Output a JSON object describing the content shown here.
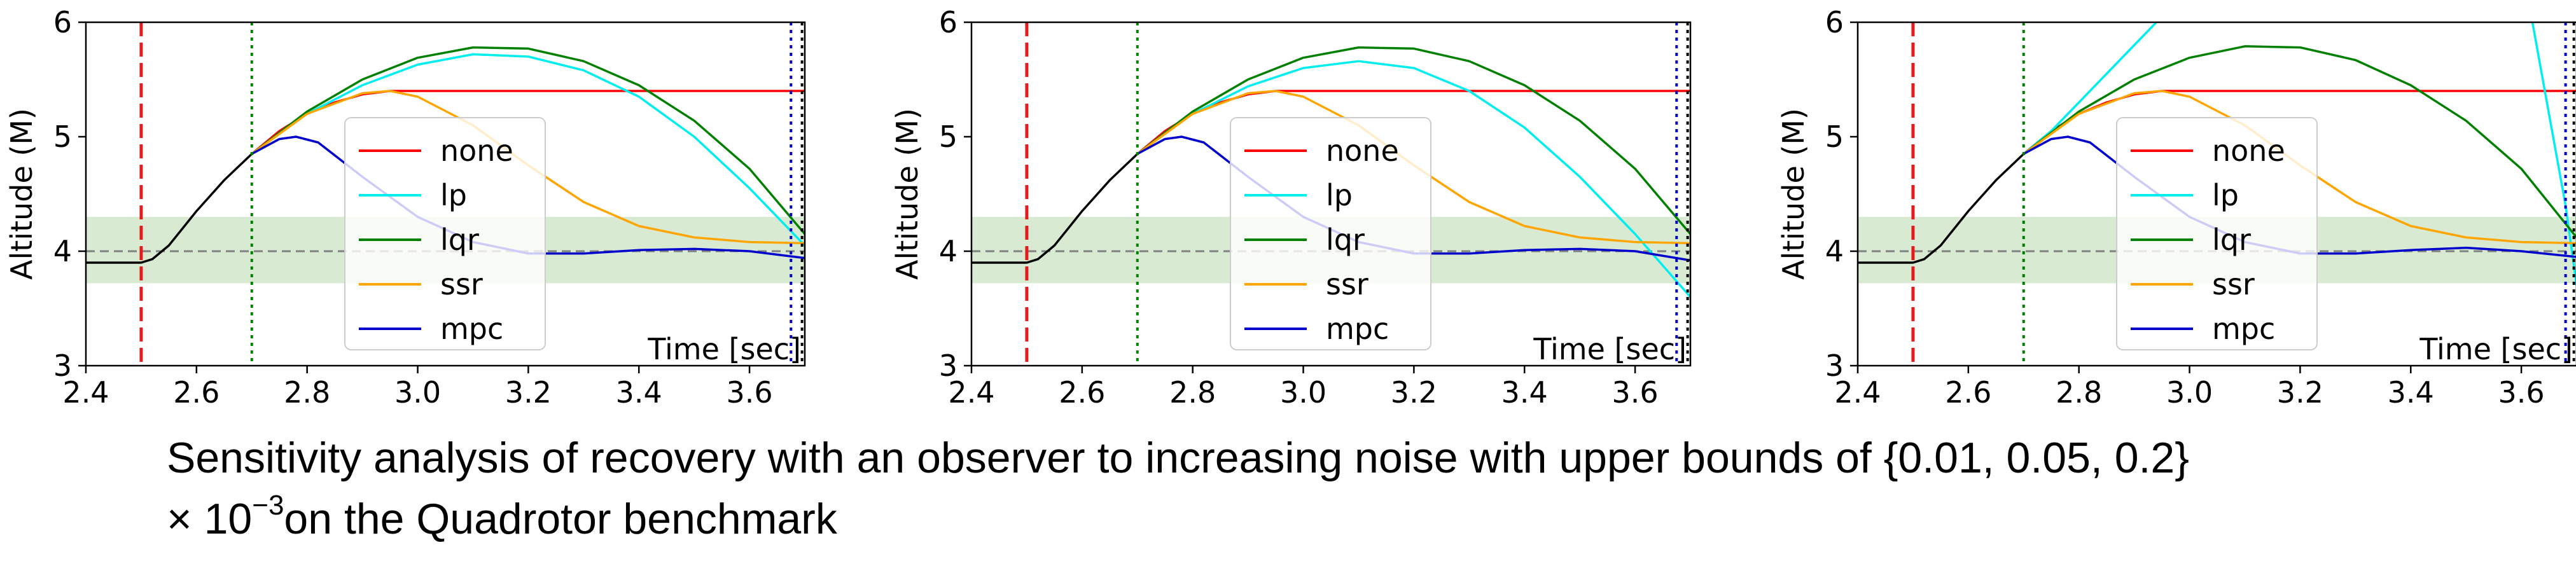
{
  "chart_data": [
    {
      "type": "line",
      "xlabel": "Time [sec]",
      "ylabel": "Altitude (M)",
      "xlim": [
        2.4,
        3.7
      ],
      "ylim": [
        3,
        6
      ],
      "xticks": [
        "2.4",
        "2.6",
        "2.8",
        "3.0",
        "3.2",
        "3.4",
        "3.6"
      ],
      "yticks": [
        "3",
        "4",
        "5",
        "6"
      ],
      "legend": {
        "placement": "center",
        "entries": [
          "none",
          "lp",
          "lqr",
          "ssr",
          "mpc"
        ]
      },
      "safe_band": [
        3.72,
        4.3
      ],
      "target": 4.0,
      "attack_start": 2.5,
      "recovery_start": 2.7,
      "deadline": [
        3.675,
        3.695
      ],
      "series": [
        {
          "name": "",
          "color": "#000000",
          "x": [
            2.4,
            2.48,
            2.5,
            2.52,
            2.55,
            2.6,
            2.65,
            2.7
          ],
          "y": [
            3.9,
            3.9,
            3.9,
            3.93,
            4.05,
            4.35,
            4.62,
            4.85
          ]
        },
        {
          "name": "none",
          "color": "#ff0000",
          "x": [
            2.7,
            2.75,
            2.8,
            2.85,
            2.9,
            2.95,
            3.0,
            3.1,
            3.3,
            3.5,
            3.7
          ],
          "y": [
            4.85,
            5.05,
            5.2,
            5.3,
            5.37,
            5.4,
            5.4,
            5.4,
            5.4,
            5.4,
            5.4
          ]
        },
        {
          "name": "lp",
          "color": "#00eeee",
          "x": [
            2.7,
            2.8,
            2.9,
            3.0,
            3.1,
            3.2,
            3.3,
            3.4,
            3.5,
            3.6,
            3.7
          ],
          "y": [
            4.85,
            5.2,
            5.45,
            5.63,
            5.72,
            5.7,
            5.58,
            5.35,
            5.0,
            4.55,
            4.05
          ]
        },
        {
          "name": "lqr",
          "color": "#008000",
          "x": [
            2.7,
            2.8,
            2.9,
            3.0,
            3.1,
            3.2,
            3.3,
            3.4,
            3.5,
            3.6,
            3.7
          ],
          "y": [
            4.85,
            5.22,
            5.5,
            5.69,
            5.78,
            5.77,
            5.66,
            5.45,
            5.14,
            4.72,
            4.15
          ]
        },
        {
          "name": "ssr",
          "color": "#ffa500",
          "x": [
            2.7,
            2.8,
            2.9,
            2.95,
            3.0,
            3.1,
            3.2,
            3.3,
            3.4,
            3.5,
            3.6,
            3.7
          ],
          "y": [
            4.85,
            5.2,
            5.38,
            5.4,
            5.35,
            5.1,
            4.75,
            4.43,
            4.22,
            4.12,
            4.08,
            4.07
          ]
        },
        {
          "name": "mpc",
          "color": "#0000cc",
          "x": [
            2.7,
            2.75,
            2.78,
            2.82,
            2.9,
            3.0,
            3.1,
            3.2,
            3.3,
            3.4,
            3.5,
            3.6,
            3.7
          ],
          "y": [
            4.85,
            4.98,
            5.0,
            4.95,
            4.65,
            4.3,
            4.08,
            3.98,
            3.98,
            4.01,
            4.02,
            4.0,
            3.94
          ]
        }
      ]
    },
    {
      "type": "line",
      "xlabel": "Time [sec]",
      "ylabel": "Altitude (M)",
      "xlim": [
        2.4,
        3.7
      ],
      "ylim": [
        3,
        6
      ],
      "xticks": [
        "2.4",
        "2.6",
        "2.8",
        "3.0",
        "3.2",
        "3.4",
        "3.6"
      ],
      "yticks": [
        "3",
        "4",
        "5",
        "6"
      ],
      "legend": {
        "placement": "center",
        "entries": [
          "none",
          "lp",
          "lqr",
          "ssr",
          "mpc"
        ]
      },
      "safe_band": [
        3.72,
        4.3
      ],
      "target": 4.0,
      "attack_start": 2.5,
      "recovery_start": 2.7,
      "deadline": [
        3.675,
        3.695
      ],
      "series": [
        {
          "name": "",
          "color": "#000000",
          "x": [
            2.4,
            2.48,
            2.5,
            2.52,
            2.55,
            2.6,
            2.65,
            2.7
          ],
          "y": [
            3.9,
            3.9,
            3.9,
            3.93,
            4.05,
            4.35,
            4.62,
            4.85
          ]
        },
        {
          "name": "none",
          "color": "#ff0000",
          "x": [
            2.7,
            2.75,
            2.8,
            2.85,
            2.9,
            2.95,
            3.0,
            3.1,
            3.3,
            3.5,
            3.7
          ],
          "y": [
            4.85,
            5.05,
            5.2,
            5.3,
            5.37,
            5.4,
            5.4,
            5.4,
            5.4,
            5.4,
            5.4
          ]
        },
        {
          "name": "lp",
          "color": "#00eeee",
          "x": [
            2.7,
            2.8,
            2.9,
            3.0,
            3.1,
            3.2,
            3.3,
            3.4,
            3.5,
            3.6,
            3.7
          ],
          "y": [
            4.85,
            5.2,
            5.44,
            5.6,
            5.66,
            5.6,
            5.4,
            5.08,
            4.65,
            4.15,
            3.6
          ]
        },
        {
          "name": "lqr",
          "color": "#008000",
          "x": [
            2.7,
            2.8,
            2.9,
            3.0,
            3.1,
            3.2,
            3.3,
            3.4,
            3.5,
            3.6,
            3.7
          ],
          "y": [
            4.85,
            5.22,
            5.5,
            5.69,
            5.78,
            5.77,
            5.66,
            5.45,
            5.14,
            4.72,
            4.15
          ]
        },
        {
          "name": "ssr",
          "color": "#ffa500",
          "x": [
            2.7,
            2.8,
            2.9,
            2.95,
            3.0,
            3.1,
            3.2,
            3.3,
            3.4,
            3.5,
            3.6,
            3.7
          ],
          "y": [
            4.85,
            5.2,
            5.38,
            5.4,
            5.35,
            5.1,
            4.75,
            4.43,
            4.22,
            4.12,
            4.08,
            4.07
          ]
        },
        {
          "name": "mpc",
          "color": "#0000cc",
          "x": [
            2.7,
            2.75,
            2.78,
            2.82,
            2.9,
            3.0,
            3.1,
            3.2,
            3.3,
            3.4,
            3.5,
            3.6,
            3.7
          ],
          "y": [
            4.85,
            4.98,
            5.0,
            4.95,
            4.65,
            4.3,
            4.08,
            3.98,
            3.98,
            4.01,
            4.02,
            4.0,
            3.92
          ]
        }
      ]
    },
    {
      "type": "line",
      "xlabel": "Time [sec]",
      "ylabel": "Altitude (M)",
      "xlim": [
        2.4,
        3.7
      ],
      "ylim": [
        3,
        6
      ],
      "xticks": [
        "2.4",
        "2.6",
        "2.8",
        "3.0",
        "3.2",
        "3.4",
        "3.6"
      ],
      "yticks": [
        "3",
        "4",
        "5",
        "6"
      ],
      "legend": {
        "placement": "center",
        "entries": [
          "none",
          "lp",
          "lqr",
          "ssr",
          "mpc"
        ]
      },
      "safe_band": [
        3.72,
        4.3
      ],
      "target": 4.0,
      "attack_start": 2.5,
      "recovery_start": 2.7,
      "deadline": [
        3.68,
        3.695
      ],
      "series": [
        {
          "name": "",
          "color": "#000000",
          "x": [
            2.4,
            2.48,
            2.5,
            2.52,
            2.55,
            2.6,
            2.65,
            2.7
          ],
          "y": [
            3.9,
            3.9,
            3.9,
            3.93,
            4.05,
            4.35,
            4.62,
            4.85
          ]
        },
        {
          "name": "none",
          "color": "#ff0000",
          "x": [
            2.7,
            2.75,
            2.8,
            2.85,
            2.9,
            2.95,
            3.0,
            3.1,
            3.3,
            3.5,
            3.7
          ],
          "y": [
            4.85,
            5.05,
            5.2,
            5.3,
            5.37,
            5.4,
            5.4,
            5.4,
            5.4,
            5.4,
            5.4
          ]
        },
        {
          "name": "lp",
          "color": "#00eeee",
          "x": [
            2.7,
            2.75,
            2.8,
            2.85,
            2.9,
            2.94,
            2.95,
            3.6,
            3.62,
            3.65,
            3.68,
            3.7
          ],
          "y": [
            4.85,
            5.05,
            5.3,
            5.55,
            5.8,
            6.0,
            6.05,
            6.05,
            6.0,
            5.2,
            4.4,
            3.7
          ]
        },
        {
          "name": "lqr",
          "color": "#008000",
          "x": [
            2.7,
            2.8,
            2.9,
            3.0,
            3.1,
            3.2,
            3.3,
            3.4,
            3.5,
            3.6,
            3.7
          ],
          "y": [
            4.85,
            5.22,
            5.5,
            5.69,
            5.79,
            5.78,
            5.67,
            5.45,
            5.14,
            4.72,
            4.12
          ]
        },
        {
          "name": "ssr",
          "color": "#ffa500",
          "x": [
            2.7,
            2.8,
            2.9,
            2.95,
            3.0,
            3.1,
            3.2,
            3.3,
            3.4,
            3.5,
            3.6,
            3.7
          ],
          "y": [
            4.85,
            5.2,
            5.38,
            5.4,
            5.35,
            5.1,
            4.75,
            4.43,
            4.22,
            4.12,
            4.08,
            4.07
          ]
        },
        {
          "name": "mpc",
          "color": "#0000cc",
          "x": [
            2.7,
            2.75,
            2.78,
            2.82,
            2.9,
            3.0,
            3.1,
            3.2,
            3.3,
            3.4,
            3.5,
            3.6,
            3.7
          ],
          "y": [
            4.85,
            4.98,
            5.0,
            4.95,
            4.65,
            4.3,
            4.08,
            3.98,
            3.98,
            4.01,
            4.03,
            4.0,
            3.95
          ]
        }
      ]
    }
  ],
  "caption": {
    "line1": "Sensitivity analysis of recovery with an observer to increasing noise with upper bounds of {0.01, 0.05, 0.2}",
    "line2_prefix": "× 10",
    "line2_exponent": "−3",
    "line2_suffix": "on the Quadrotor benchmark"
  },
  "colors": {
    "safe_band": "#d9ead3",
    "legend_border": "#cccccc",
    "target_line": "#808080",
    "attack_line": "#e41a1c",
    "recovery_line": "#008000",
    "deadline_line": "#0000cc"
  }
}
